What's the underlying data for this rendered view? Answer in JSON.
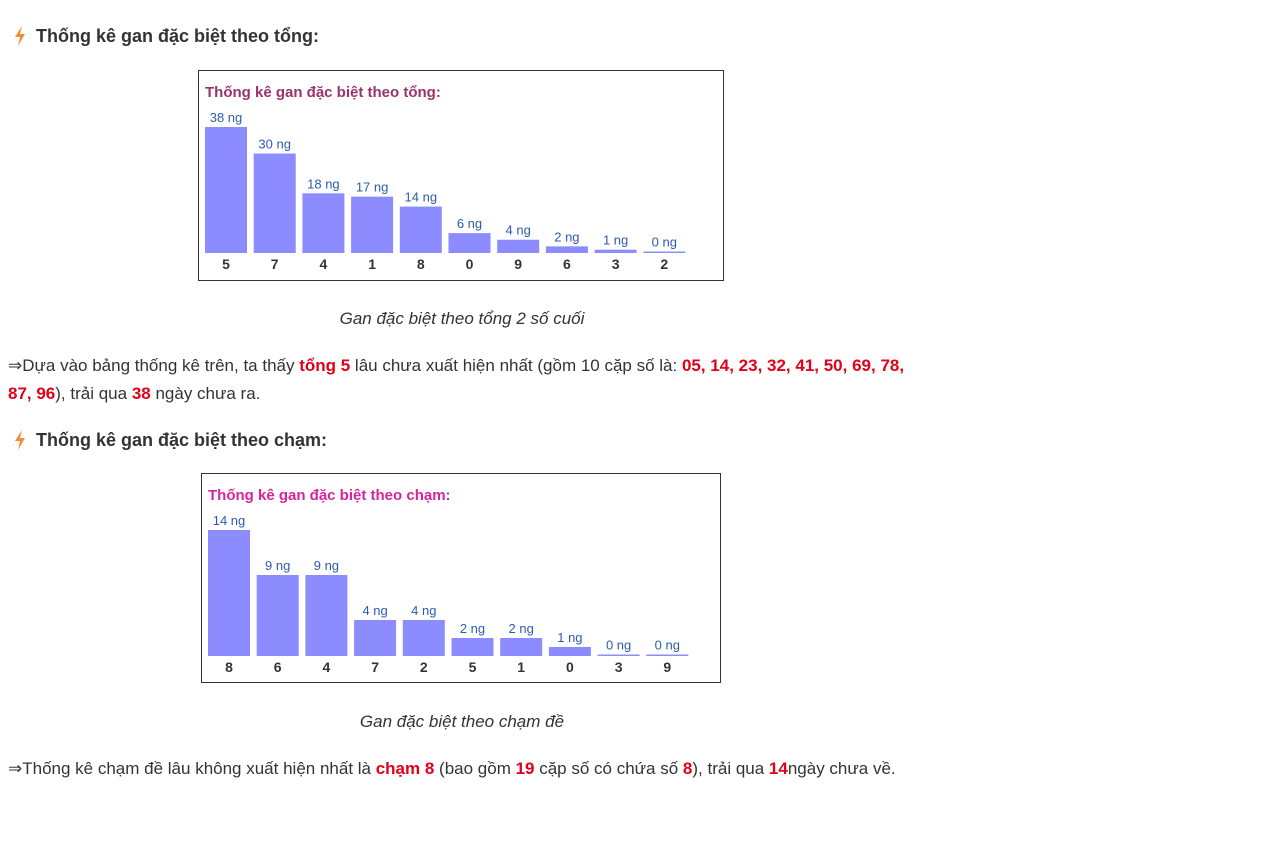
{
  "section1": {
    "heading": "Thống kê gan đặc biệt theo tổng:",
    "caption": "Gan đặc biệt theo tổng 2 số cuối",
    "conclusion": {
      "arrow": "⇒",
      "t1": "Dựa vào bảng thống kê trên, ta thấy ",
      "hl1": "tổng 5",
      "t2": " lâu chưa xuất hiện nhất (gồm 10 cặp số là: ",
      "hl2": "05, 14, 23, 32, 41, 50, 69, 78, 87, 96",
      "t3": "), trải qua ",
      "hl3": "38",
      "t4": " ngày chưa ra."
    }
  },
  "section2": {
    "heading": "Thống kê gan đặc biệt theo chạm:",
    "caption": "Gan đặc biệt theo chạm đề",
    "conclusion": {
      "arrow": "⇒",
      "t1": "Thống kê chạm đề lâu không xuất hiện nhất là ",
      "hl1": "chạm 8",
      "t2": " (bao gồm ",
      "hl2": "19",
      "t3": " cặp số có chứa số ",
      "hl3": "8",
      "t4": "), trải qua ",
      "hl4": "14",
      "t5": "ngày chưa về."
    }
  },
  "colors": {
    "bar": "#8c8cff",
    "title_tong": "#99336e",
    "title_cham": "#d6249f",
    "value_label": "#2a5db0",
    "highlight": "#e2001a"
  },
  "icons": {
    "heading": "lightning-bolt-icon"
  },
  "chart_data": [
    {
      "type": "bar",
      "title": "Thống kê gan đặc biệt theo tổng:",
      "categories": [
        "5",
        "7",
        "4",
        "1",
        "8",
        "0",
        "9",
        "6",
        "3",
        "2"
      ],
      "values": [
        38,
        30,
        18,
        17,
        14,
        6,
        4,
        2,
        1,
        0
      ],
      "value_labels": [
        "38 ng",
        "30 ng",
        "18 ng",
        "17 ng",
        "14 ng",
        "6 ng",
        "4 ng",
        "2 ng",
        "1 ng",
        "0 ng"
      ],
      "ylim": [
        0,
        38
      ]
    },
    {
      "type": "bar",
      "title": "Thống kê gan đặc biệt theo chạm:",
      "categories": [
        "8",
        "6",
        "4",
        "7",
        "2",
        "5",
        "1",
        "0",
        "3",
        "9"
      ],
      "values": [
        14,
        9,
        9,
        4,
        4,
        2,
        2,
        1,
        0,
        0
      ],
      "value_labels": [
        "14 ng",
        "9 ng",
        "9 ng",
        "4 ng",
        "4 ng",
        "2 ng",
        "2 ng",
        "1 ng",
        "0 ng",
        "0 ng"
      ],
      "ylim": [
        0,
        14
      ]
    }
  ]
}
